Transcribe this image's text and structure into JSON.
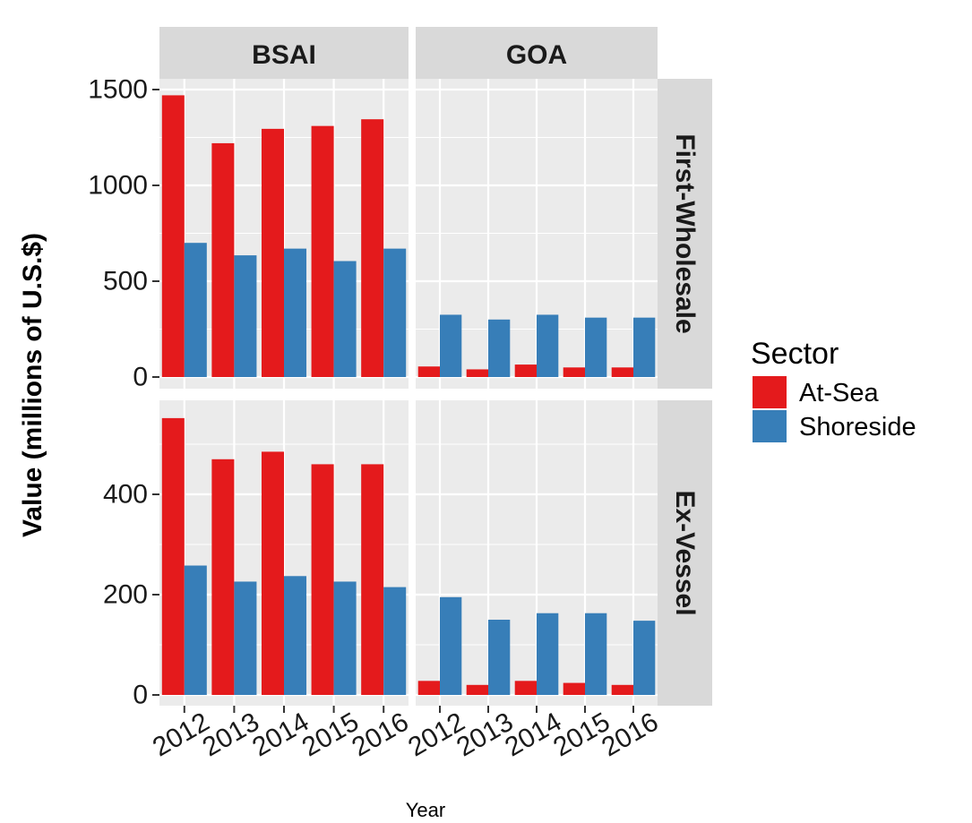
{
  "chart_data": {
    "type": "bar",
    "title": "",
    "xlabel": "Year",
    "ylabel": "Value (millions of U.S.$)",
    "categories": [
      "2012",
      "2013",
      "2014",
      "2015",
      "2016"
    ],
    "legend": {
      "title": "Sector",
      "position": "right",
      "entries": [
        {
          "name": "At-Sea",
          "color": "#e41a1c"
        },
        {
          "name": "Shoreside",
          "color": "#377eb8"
        }
      ]
    },
    "colors": {
      "panel_bg": "#ebebeb",
      "strip_bg": "#d9d9d9",
      "grid": "#ffffff"
    },
    "grid": true,
    "column_facets": [
      "BSAI",
      "GOA"
    ],
    "row_facets": [
      {
        "label": "First-Wholesale",
        "ylim": [
          0,
          1500
        ],
        "ticks": [
          0,
          500,
          1000,
          1500
        ]
      },
      {
        "label": "Ex-Vessel",
        "ylim": [
          0,
          600
        ],
        "ticks": [
          0,
          200,
          400
        ]
      }
    ],
    "panels": [
      {
        "column": "BSAI",
        "row": "First-Wholesale",
        "series": [
          {
            "name": "At-Sea",
            "values": [
              1470,
              1220,
              1295,
              1310,
              1345
            ]
          },
          {
            "name": "Shoreside",
            "values": [
              700,
              635,
              670,
              605,
              670
            ]
          }
        ]
      },
      {
        "column": "GOA",
        "row": "First-Wholesale",
        "series": [
          {
            "name": "At-Sea",
            "values": [
              55,
              40,
              65,
              50,
              50
            ]
          },
          {
            "name": "Shoreside",
            "values": [
              325,
              300,
              325,
              310,
              310
            ]
          }
        ]
      },
      {
        "column": "BSAI",
        "row": "Ex-Vessel",
        "series": [
          {
            "name": "At-Sea",
            "values": [
              552,
              470,
              485,
              460,
              460
            ]
          },
          {
            "name": "Shoreside",
            "values": [
              258,
              226,
              237,
              226,
              215
            ]
          }
        ]
      },
      {
        "column": "GOA",
        "row": "Ex-Vessel",
        "series": [
          {
            "name": "At-Sea",
            "values": [
              28,
              20,
              28,
              24,
              20
            ]
          },
          {
            "name": "Shoreside",
            "values": [
              195,
              150,
              163,
              163,
              148
            ]
          }
        ]
      }
    ]
  }
}
